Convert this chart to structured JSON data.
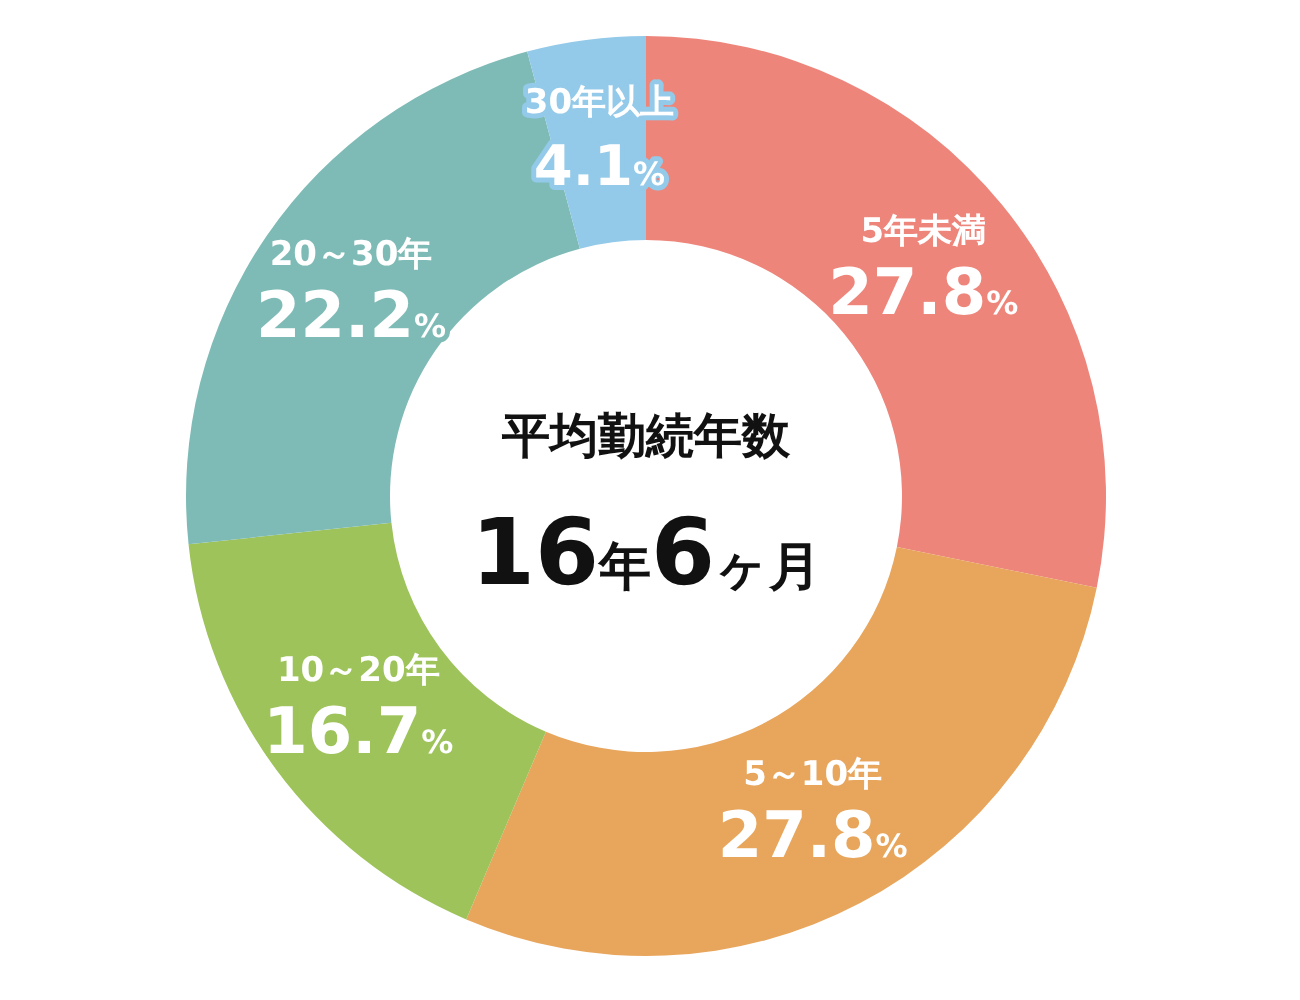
{
  "chart_data": {
    "type": "donut",
    "title": "平均勤続年数",
    "annotations": [
      "16年6ヶ月"
    ],
    "categories": [
      "5年未満",
      "5～10年",
      "10～20年",
      "20～30年",
      "30年以上"
    ],
    "values": [
      27.8,
      27.8,
      16.7,
      22.2,
      4.1
    ],
    "value_labels": [
      "27.8%",
      "27.8%",
      "16.7%",
      "22.2%",
      "4.1%"
    ],
    "colors": [
      "#ee857b",
      "#e8a55c",
      "#9dc35a",
      "#7fbbb6",
      "#93c9e9"
    ]
  }
}
